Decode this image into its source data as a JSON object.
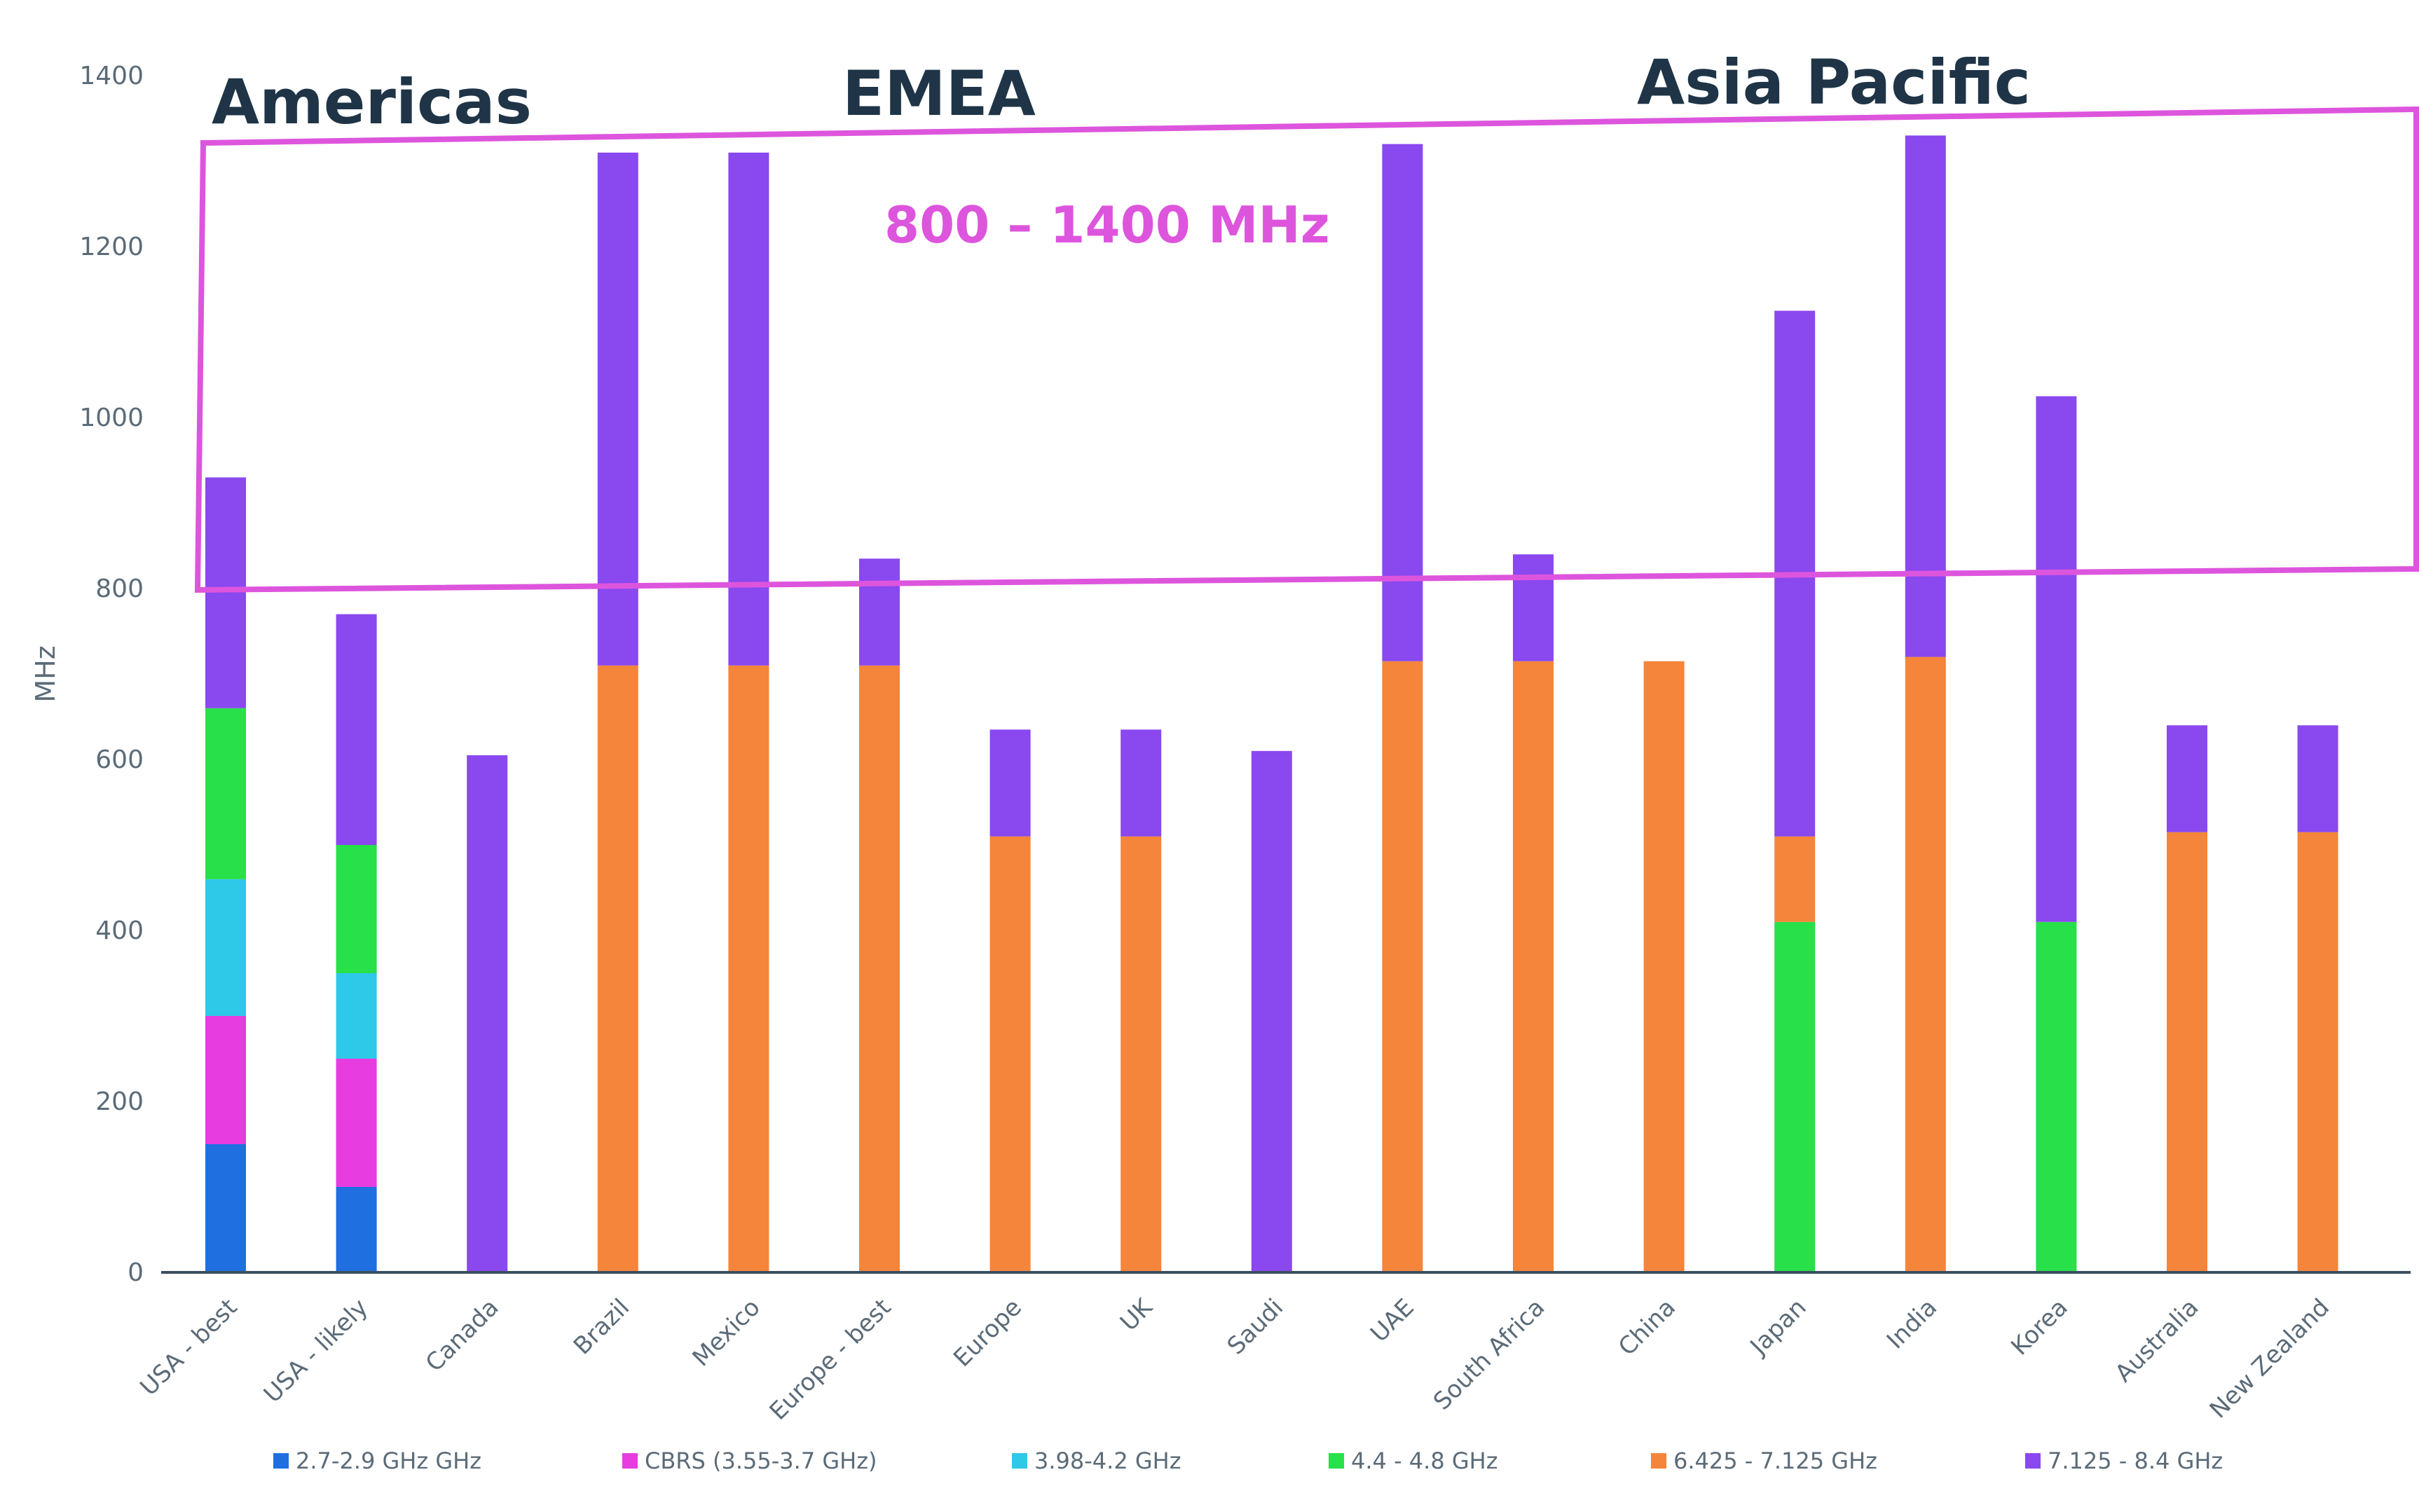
{
  "chart_data": {
    "type": "bar",
    "stacked": true,
    "title": "",
    "xlabel": "",
    "ylabel": "MHz",
    "ylim": [
      0,
      1400
    ],
    "yticks": [
      0,
      200,
      400,
      600,
      800,
      1000,
      1200,
      1400
    ],
    "categories": [
      "USA - best",
      "USA - likely",
      "Canada",
      "Brazil",
      "Mexico",
      "Europe - best",
      "Europe",
      "UK",
      "Saudi",
      "UAE",
      "South Africa",
      "China",
      "Japan",
      "India",
      "Korea",
      "Australia",
      "New Zealand"
    ],
    "series": [
      {
        "name": "2.7-2.9 GHz GHz",
        "color": "#1f6fe0",
        "values": [
          150,
          100,
          0,
          0,
          0,
          0,
          0,
          0,
          0,
          0,
          0,
          0,
          0,
          0,
          0,
          0,
          0
        ]
      },
      {
        "name": "CBRS (3.55-3.7 GHz)",
        "color": "#e63ce0",
        "values": [
          150,
          150,
          0,
          0,
          0,
          0,
          0,
          0,
          0,
          0,
          0,
          0,
          0,
          0,
          0,
          0,
          0
        ]
      },
      {
        "name": "3.98-4.2 GHz",
        "color": "#2ec8e8",
        "values": [
          160,
          100,
          0,
          0,
          0,
          0,
          0,
          0,
          0,
          0,
          0,
          0,
          0,
          0,
          0,
          0,
          0
        ]
      },
      {
        "name": "4.4 - 4.8 GHz",
        "color": "#28e04a",
        "values": [
          200,
          150,
          0,
          0,
          0,
          0,
          0,
          0,
          0,
          0,
          0,
          0,
          410,
          0,
          410,
          0,
          0
        ]
      },
      {
        "name": "6.425 - 7.125 GHz",
        "color": "#f5853a",
        "values": [
          0,
          0,
          0,
          710,
          710,
          710,
          510,
          510,
          0,
          715,
          715,
          715,
          100,
          720,
          0,
          515,
          515
        ]
      },
      {
        "name": "7.125 - 8.4 GHz",
        "color": "#8a48ef",
        "values": [
          270,
          270,
          605,
          600,
          600,
          125,
          125,
          125,
          610,
          605,
          125,
          0,
          615,
          610,
          615,
          125,
          125
        ]
      }
    ],
    "regions": [
      {
        "label": "Americas"
      },
      {
        "label": "EMEA"
      },
      {
        "label": "Asia Pacific"
      }
    ],
    "highlight": {
      "label": "800 – 1400 MHz",
      "range": [
        800,
        1400
      ],
      "color": "#dd55dd"
    },
    "legend_position": "bottom",
    "grid": false
  }
}
